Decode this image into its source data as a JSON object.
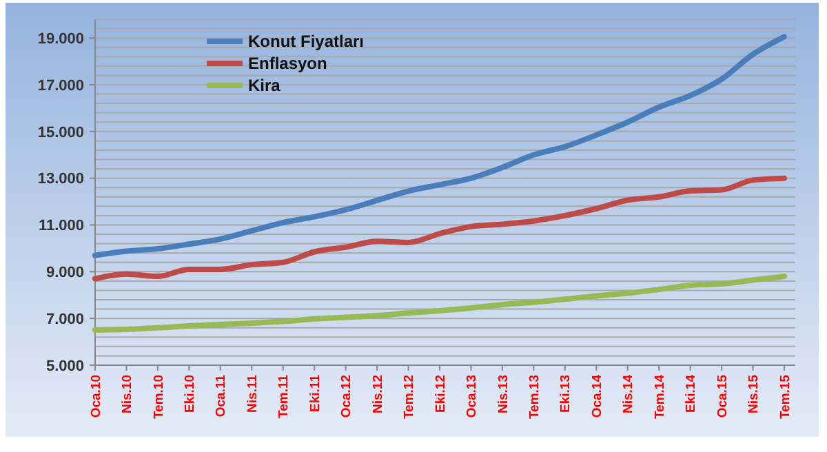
{
  "chart_data": {
    "type": "line",
    "categories": [
      "Oca.10",
      "Nis.10",
      "Tem.10",
      "Eki.10",
      "Oca.11",
      "Nis.11",
      "Tem.11",
      "Eki.11",
      "Oca.12",
      "Nis.12",
      "Tem.12",
      "Eki.12",
      "Oca.13",
      "Nis.13",
      "Tem.13",
      "Eki.13",
      "Oca.14",
      "Nis.14",
      "Tem.14",
      "Eki.14",
      "Oca.15",
      "Nis.15",
      "Tem.15"
    ],
    "series": [
      {
        "name": "Konut Fiyatları",
        "color": "#4a7ebb",
        "values": [
          9700,
          9880,
          9980,
          10180,
          10400,
          10750,
          11100,
          11350,
          11650,
          12050,
          12450,
          12720,
          13000,
          13460,
          14000,
          14350,
          14850,
          15400,
          16040,
          16540,
          17240,
          18300,
          19050
        ]
      },
      {
        "name": "Enflasyon",
        "color": "#be4b48",
        "values": [
          8700,
          8900,
          8800,
          9100,
          9100,
          9300,
          9400,
          9850,
          10050,
          10300,
          10250,
          10630,
          10930,
          11030,
          11170,
          11400,
          11700,
          12060,
          12200,
          12460,
          12500,
          12920,
          13000
        ]
      },
      {
        "name": "Kira",
        "color": "#98b954",
        "values": [
          6500,
          6530,
          6600,
          6680,
          6740,
          6800,
          6870,
          6980,
          7050,
          7120,
          7230,
          7330,
          7450,
          7590,
          7690,
          7820,
          7960,
          8080,
          8240,
          8420,
          8480,
          8640,
          8800
        ]
      }
    ],
    "ylim": [
      5000,
      19800
    ],
    "yticks": [
      {
        "value": 5000,
        "label": "5.000"
      },
      {
        "value": 5400,
        "label": null
      },
      {
        "value": 5800,
        "label": null
      },
      {
        "value": 6200,
        "label": null
      },
      {
        "value": 6600,
        "label": null
      },
      {
        "value": 7000,
        "label": "7.000"
      },
      {
        "value": 7400,
        "label": null
      },
      {
        "value": 7800,
        "label": null
      },
      {
        "value": 8200,
        "label": null
      },
      {
        "value": 8600,
        "label": null
      },
      {
        "value": 9000,
        "label": "9.000"
      },
      {
        "value": 9400,
        "label": null
      },
      {
        "value": 9800,
        "label": null
      },
      {
        "value": 10200,
        "label": null
      },
      {
        "value": 10600,
        "label": null
      },
      {
        "value": 11000,
        "label": "11.000"
      },
      {
        "value": 11400,
        "label": null
      },
      {
        "value": 11800,
        "label": null
      },
      {
        "value": 12200,
        "label": null
      },
      {
        "value": 12600,
        "label": null
      },
      {
        "value": 13000,
        "label": "13.000"
      },
      {
        "value": 13400,
        "label": null
      },
      {
        "value": 13800,
        "label": null
      },
      {
        "value": 14200,
        "label": null
      },
      {
        "value": 14600,
        "label": null
      },
      {
        "value": 15000,
        "label": "15.000"
      },
      {
        "value": 15400,
        "label": null
      },
      {
        "value": 15800,
        "label": null
      },
      {
        "value": 16200,
        "label": null
      },
      {
        "value": 16600,
        "label": null
      },
      {
        "value": 17000,
        "label": "17.000"
      },
      {
        "value": 17400,
        "label": null
      },
      {
        "value": 17800,
        "label": null
      },
      {
        "value": 18200,
        "label": null
      },
      {
        "value": 18600,
        "label": null
      },
      {
        "value": 19000,
        "label": "19.000"
      },
      {
        "value": 19400,
        "label": null
      },
      {
        "value": 19800,
        "label": null
      }
    ],
    "grid": "y",
    "legend": "top left",
    "marker": "none",
    "line_style": "solid"
  }
}
